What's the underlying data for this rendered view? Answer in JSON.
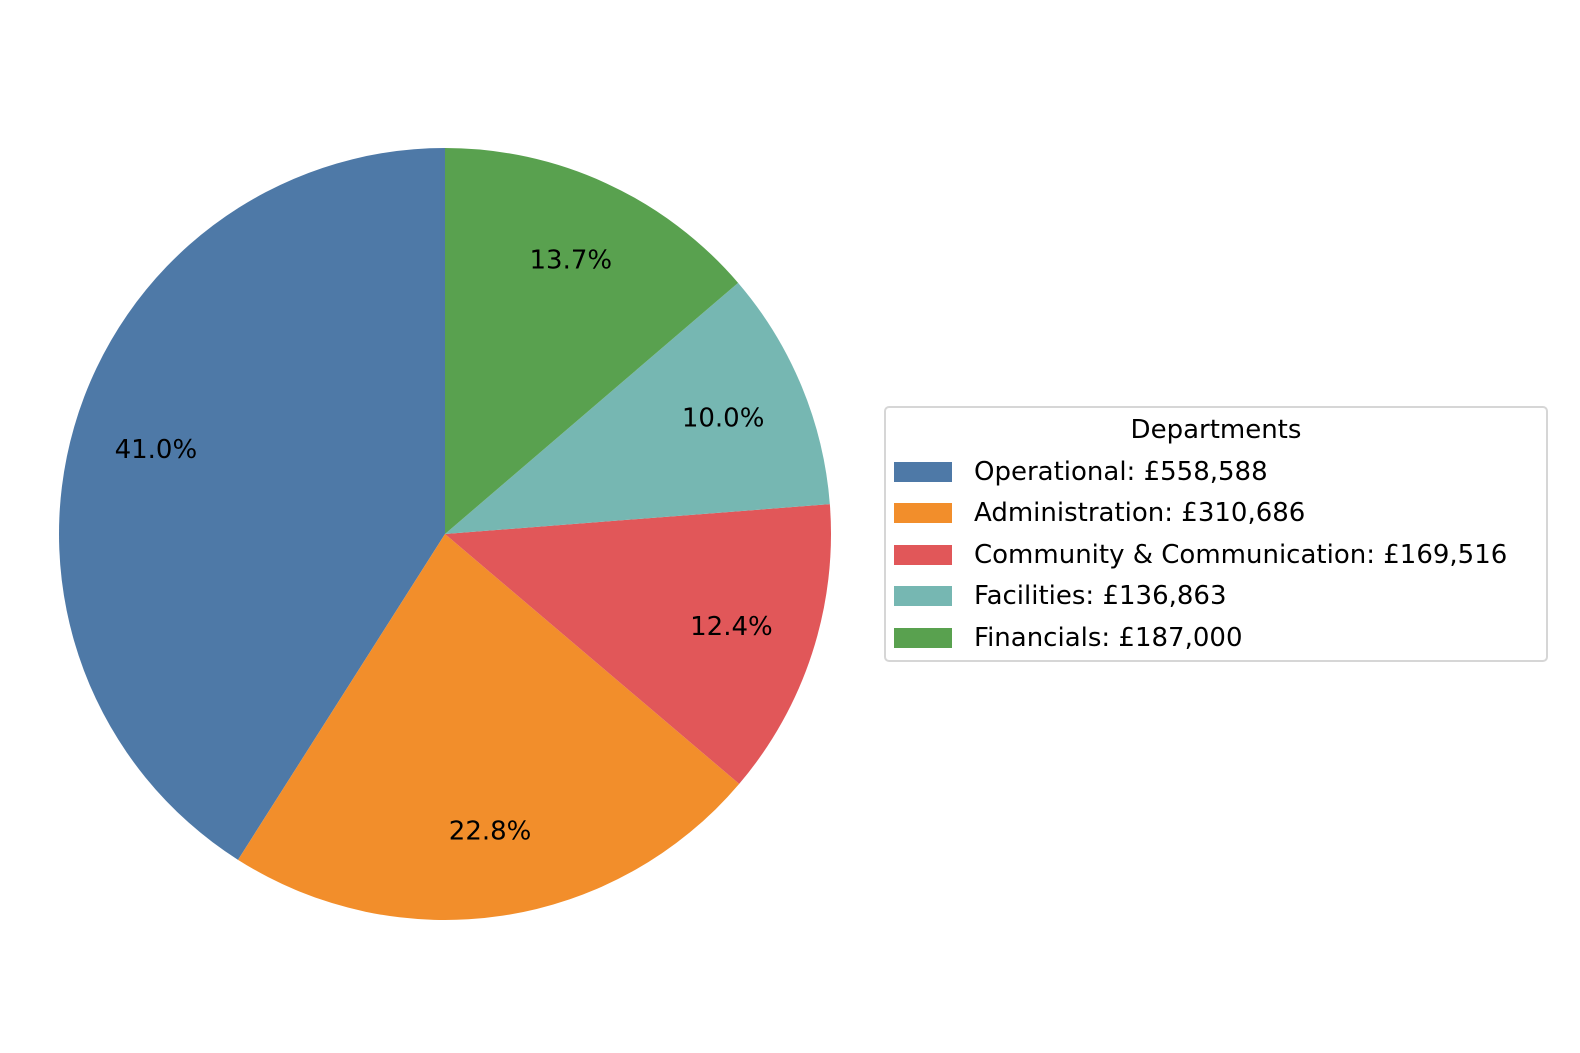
{
  "chart_data": {
    "type": "pie",
    "title": "",
    "legend_title": "Departments",
    "legend_position": "right",
    "start_angle": 90,
    "counterclock": true,
    "categories": [
      "Operational",
      "Administration",
      "Community & Communication",
      "Facilities",
      "Financials"
    ],
    "values": [
      558588,
      310686,
      169516,
      136863,
      187000
    ],
    "percent_labels": [
      "41.0%",
      "22.8%",
      "12.4%",
      "10.0%",
      "13.7%"
    ],
    "colors": [
      "#4e79a7",
      "#f28e2b",
      "#e15759",
      "#76b7b2",
      "#59a14f"
    ],
    "currency": "£"
  },
  "legend": {
    "title": "Departments",
    "items": [
      {
        "label": "Operational: £558,588",
        "color": "#4e79a7"
      },
      {
        "label": "Administration: £310,686",
        "color": "#f28e2b"
      },
      {
        "label": "Community & Communication: £169,516",
        "color": "#e15759"
      },
      {
        "label": "Facilities: £136,863",
        "color": "#76b7b2"
      },
      {
        "label": "Financials: £187,000",
        "color": "#59a14f"
      }
    ]
  }
}
